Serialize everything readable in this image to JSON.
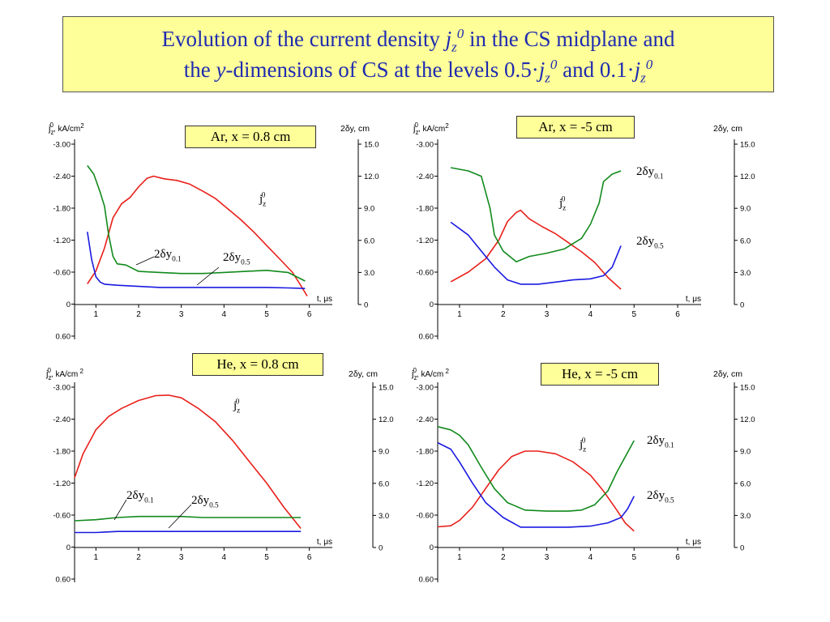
{
  "title": {
    "line1_a": "Evolution of the current density ",
    "j": "j",
    "z": "z",
    "zero": "0",
    "line1_b": " in the CS midplane and",
    "line2_a": "the ",
    "y": "y",
    "line2_b": "-dimensions of CS at the levels 0.5·",
    "line2_c": " and 0.1·"
  },
  "colors": {
    "title_text": "#1f2bb0",
    "label_bg": "#ffff99",
    "j_curve": "#e8201a",
    "dy01_curve": "#118a1c",
    "dy05_curve": "#1a1ae0"
  },
  "chart_data": [
    {
      "type": "line",
      "label": "Ar, x = 0.8 cm",
      "ylabel_left": "j",
      "ylabel_left_sub": "z",
      "ylabel_left_sup": "0",
      "ylabel_left_unit": ", kA/cm",
      "ylabel_left_unit_sup": "2",
      "ylabel_right": "2δy, cm",
      "xlabel": "t, μs",
      "xlim": [
        0.5,
        6.5
      ],
      "ylim_left": [
        -3.0,
        0.6
      ],
      "ylim_right": [
        0,
        15
      ],
      "xticks": [
        "1",
        "2",
        "3",
        "4",
        "5",
        "6"
      ],
      "yticks_left": [
        "-3.00",
        "-2.40",
        "-1.80",
        "-1.20",
        "-0.60",
        "0",
        "0.60"
      ],
      "yticks_right": [
        "15.0",
        "12.0",
        "9.0",
        "6.0",
        "3.0",
        "0"
      ],
      "series": [
        {
          "name": "j",
          "sub": "z",
          "sup": "0",
          "axis": "left",
          "color": "#e8201a",
          "x": [
            0.8,
            1.0,
            1.2,
            1.4,
            1.6,
            1.8,
            2.0,
            2.2,
            2.35,
            2.6,
            2.9,
            3.2,
            3.5,
            3.8,
            4.1,
            4.4,
            4.7,
            5.0,
            5.3,
            5.6,
            5.8,
            5.95
          ],
          "y": [
            -0.38,
            -0.62,
            -1.05,
            -1.62,
            -1.88,
            -2.0,
            -2.2,
            -2.36,
            -2.4,
            -2.35,
            -2.32,
            -2.25,
            -2.12,
            -1.98,
            -1.78,
            -1.58,
            -1.35,
            -1.1,
            -0.85,
            -0.6,
            -0.35,
            -0.15
          ]
        },
        {
          "name": "2δy",
          "sub": "0.1",
          "axis": "right",
          "color": "#118a1c",
          "x": [
            0.8,
            0.95,
            1.1,
            1.2,
            1.3,
            1.4,
            1.5,
            1.7,
            2.0,
            2.5,
            3.0,
            3.5,
            4.0,
            4.5,
            5.0,
            5.5,
            5.9
          ],
          "y": [
            13.0,
            12.2,
            10.5,
            9.2,
            6.5,
            4.5,
            3.8,
            3.7,
            3.1,
            3.0,
            2.9,
            2.9,
            3.0,
            3.1,
            3.2,
            3.0,
            2.2
          ]
        },
        {
          "name": "2δy",
          "sub": "0.5",
          "axis": "right",
          "color": "#1a1ae0",
          "x": [
            0.8,
            0.9,
            1.0,
            1.1,
            1.2,
            1.5,
            2.0,
            2.5,
            3.0,
            3.5,
            4.0,
            4.5,
            5.0,
            5.5,
            5.9
          ],
          "y": [
            6.8,
            4.2,
            2.6,
            2.1,
            1.9,
            1.8,
            1.7,
            1.6,
            1.6,
            1.6,
            1.6,
            1.6,
            1.6,
            1.55,
            1.5
          ]
        }
      ],
      "annotations": [
        {
          "series": 0,
          "text_main": "j",
          "sub": "z",
          "sup": "0"
        },
        {
          "series": 1,
          "text_main": "2δy",
          "sub": "0.1"
        },
        {
          "series": 2,
          "text_main": "2δy",
          "sub": "0.5"
        }
      ]
    },
    {
      "type": "line",
      "label": "Ar, x = -5 cm",
      "ylabel_left": "j",
      "ylabel_left_sub": "z",
      "ylabel_left_sup": "0",
      "ylabel_left_unit": ", kA/cm",
      "ylabel_left_unit_sup": "2",
      "ylabel_right": "2δy, cm",
      "xlabel": "t, μs",
      "xlim": [
        0.5,
        6.5
      ],
      "ylim_left": [
        -3.0,
        0.6
      ],
      "ylim_right": [
        0,
        15
      ],
      "xticks": [
        "1",
        "2",
        "3",
        "4",
        "5",
        "6"
      ],
      "yticks_left": [
        "-3.00",
        "-2.40",
        "-1.80",
        "-1.20",
        "-0.60",
        "0",
        "0.60"
      ],
      "yticks_right": [
        "15.0",
        "12.0",
        "9.0",
        "6.0",
        "3.0",
        "0"
      ],
      "series": [
        {
          "name": "j",
          "sub": "z",
          "sup": "0",
          "axis": "left",
          "color": "#e8201a",
          "x": [
            0.8,
            1.2,
            1.6,
            1.9,
            2.1,
            2.3,
            2.4,
            2.6,
            2.9,
            3.2,
            3.5,
            3.8,
            4.1,
            4.4,
            4.7
          ],
          "y": [
            -0.42,
            -0.6,
            -0.85,
            -1.2,
            -1.55,
            -1.72,
            -1.76,
            -1.6,
            -1.45,
            -1.32,
            -1.15,
            -0.98,
            -0.78,
            -0.5,
            -0.28
          ]
        },
        {
          "name": "2δy",
          "sub": "0.1",
          "axis": "right",
          "color": "#118a1c",
          "x": [
            0.8,
            1.2,
            1.5,
            1.6,
            1.7,
            1.8,
            2.0,
            2.3,
            2.6,
            3.0,
            3.4,
            3.8,
            4.0,
            4.2,
            4.3,
            4.5,
            4.7
          ],
          "y": [
            12.8,
            12.5,
            12.0,
            10.5,
            9.0,
            6.5,
            5.0,
            4.0,
            4.5,
            4.8,
            5.2,
            6.2,
            7.5,
            9.5,
            11.5,
            12.2,
            12.5
          ]
        },
        {
          "name": "2δy",
          "sub": "0.5",
          "axis": "right",
          "color": "#1a1ae0",
          "x": [
            0.8,
            1.2,
            1.5,
            1.8,
            2.1,
            2.4,
            2.8,
            3.2,
            3.6,
            4.0,
            4.3,
            4.5,
            4.7
          ],
          "y": [
            7.7,
            6.5,
            5.0,
            3.5,
            2.3,
            1.9,
            1.9,
            2.1,
            2.3,
            2.4,
            2.7,
            3.5,
            5.5
          ]
        }
      ],
      "annotations": [
        {
          "series": 0,
          "text_main": "j",
          "sub": "z",
          "sup": "0"
        },
        {
          "series": 1,
          "text_main": "2δy",
          "sub": "0.1"
        },
        {
          "series": 2,
          "text_main": "2δy",
          "sub": "0.5"
        }
      ]
    },
    {
      "type": "line",
      "label": "He, x = 0.8 cm",
      "ylabel_left": "j",
      "ylabel_left_sub": "z",
      "ylabel_left_sup": "0",
      "ylabel_left_unit": ", kA/cm",
      "ylabel_left_unit_sup": " 2",
      "ylabel_right": "2δy, cm",
      "xlabel": "t, μs",
      "xlim": [
        0.5,
        6.5
      ],
      "ylim_left": [
        -3.0,
        0.6
      ],
      "ylim_right": [
        0,
        15
      ],
      "xticks": [
        "1",
        "2",
        "3",
        "4",
        "5",
        "6"
      ],
      "yticks_left": [
        "-3.00",
        "-2.40",
        "-1.80",
        "-1.20",
        "-0.60",
        "0",
        "0.60"
      ],
      "yticks_right": [
        "15.0",
        "12.0",
        "9.0",
        "6.0",
        "3.0",
        "0"
      ],
      "series": [
        {
          "name": "j",
          "sub": "z",
          "sup": "0",
          "axis": "left",
          "color": "#e8201a",
          "x": [
            0.5,
            0.7,
            1.0,
            1.3,
            1.6,
            2.0,
            2.4,
            2.7,
            3.0,
            3.4,
            3.8,
            4.2,
            4.6,
            5.0,
            5.4,
            5.8
          ],
          "y": [
            -1.3,
            -1.75,
            -2.2,
            -2.45,
            -2.6,
            -2.75,
            -2.84,
            -2.85,
            -2.8,
            -2.6,
            -2.35,
            -2.0,
            -1.6,
            -1.2,
            -0.75,
            -0.35
          ]
        },
        {
          "name": "2δy",
          "sub": "0.1",
          "axis": "right",
          "color": "#118a1c",
          "x": [
            0.5,
            1.0,
            1.5,
            2.0,
            2.5,
            3.0,
            3.5,
            4.0,
            4.5,
            5.0,
            5.5,
            5.8
          ],
          "y": [
            2.5,
            2.6,
            2.8,
            2.9,
            2.9,
            2.9,
            2.8,
            2.8,
            2.8,
            2.8,
            2.8,
            2.8
          ]
        },
        {
          "name": "2δy",
          "sub": "0.5",
          "axis": "right",
          "color": "#1a1ae0",
          "x": [
            0.5,
            1.0,
            1.5,
            2.0,
            2.5,
            3.0,
            3.5,
            4.0,
            4.5,
            5.0,
            5.5,
            5.8
          ],
          "y": [
            1.4,
            1.4,
            1.5,
            1.5,
            1.5,
            1.5,
            1.5,
            1.5,
            1.5,
            1.5,
            1.5,
            1.5
          ]
        }
      ],
      "annotations": [
        {
          "series": 0,
          "text_main": "j",
          "sub": "z",
          "sup": "0"
        },
        {
          "series": 1,
          "text_main": "2δy",
          "sub": "0.1"
        },
        {
          "series": 2,
          "text_main": "2δy",
          "sub": "0.5"
        }
      ]
    },
    {
      "type": "line",
      "label": "He, x = -5 cm",
      "ylabel_left": "j",
      "ylabel_left_sub": "z",
      "ylabel_left_sup": "0",
      "ylabel_left_unit": ", kA/cm",
      "ylabel_left_unit_sup": " 2",
      "ylabel_right": "2δy, cm",
      "xlabel": "t, μs",
      "xlim": [
        0.5,
        6.5
      ],
      "ylim_left": [
        -3.0,
        0.6
      ],
      "ylim_right": [
        0,
        15
      ],
      "xticks": [
        "1",
        "2",
        "3",
        "4",
        "5",
        "6"
      ],
      "yticks_left": [
        "-3.00",
        "-2.40",
        "-1.80",
        "-1.20",
        "-0.60",
        "0",
        "0.60"
      ],
      "yticks_right": [
        "15.0",
        "12.0",
        "9.0",
        "6.0",
        "3.0",
        "0"
      ],
      "series": [
        {
          "name": "j",
          "sub": "z",
          "sup": "0",
          "axis": "left",
          "color": "#e8201a",
          "x": [
            0.5,
            0.8,
            1.0,
            1.3,
            1.6,
            1.9,
            2.2,
            2.5,
            2.8,
            3.2,
            3.6,
            4.0,
            4.3,
            4.6,
            4.8,
            5.0
          ],
          "y": [
            -0.38,
            -0.4,
            -0.5,
            -0.75,
            -1.1,
            -1.45,
            -1.7,
            -1.8,
            -1.8,
            -1.75,
            -1.6,
            -1.35,
            -1.05,
            -0.7,
            -0.45,
            -0.3
          ]
        },
        {
          "name": "2δy",
          "sub": "0.1",
          "axis": "right",
          "color": "#118a1c",
          "x": [
            0.5,
            0.8,
            1.0,
            1.2,
            1.5,
            1.8,
            2.1,
            2.5,
            3.0,
            3.5,
            3.8,
            4.1,
            4.4,
            4.6,
            4.8,
            5.0
          ],
          "y": [
            11.3,
            11.0,
            10.5,
            9.6,
            7.5,
            5.5,
            4.2,
            3.5,
            3.4,
            3.4,
            3.5,
            4.0,
            5.3,
            7.0,
            8.5,
            10.0
          ]
        },
        {
          "name": "2δy",
          "sub": "0.5",
          "axis": "right",
          "color": "#1a1ae0",
          "x": [
            0.5,
            0.8,
            1.0,
            1.3,
            1.6,
            2.0,
            2.4,
            3.0,
            3.5,
            4.0,
            4.4,
            4.7,
            4.85,
            5.0
          ],
          "y": [
            9.8,
            9.2,
            8.0,
            6.0,
            4.2,
            2.8,
            1.9,
            1.9,
            1.9,
            2.0,
            2.3,
            2.8,
            3.6,
            4.8
          ]
        }
      ],
      "annotations": [
        {
          "series": 0,
          "text_main": "j",
          "sub": "z",
          "sup": "0"
        },
        {
          "series": 1,
          "text_main": "2δy",
          "sub": "0.1"
        },
        {
          "series": 2,
          "text_main": "2δy",
          "sub": "0.5"
        }
      ]
    }
  ]
}
